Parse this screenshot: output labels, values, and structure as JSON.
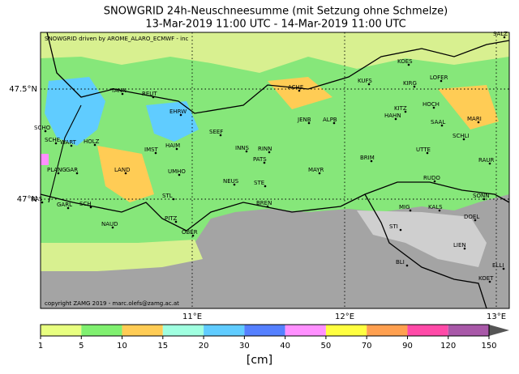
{
  "header": {
    "title": "SNOWGRID 24h-Neuschneesumme (mit Setzung ohne Schmelze)",
    "subtitle": "13-Mar-2019 11:00 UTC - 14-Mar-2019 11:00 UTC"
  },
  "map": {
    "credit_top": "SNOWGRID driven by AROME_ALARO_ECMWF - inc",
    "credit_bottom": "copyright ZAMG 2019 - marc.olefs@zamg.ac.at",
    "lat_labels": [
      "47.5°N",
      "47°N"
    ],
    "lon_labels": [
      "11°E",
      "12°E",
      "13°E"
    ],
    "places": [
      "SALZ",
      "KOES",
      "KUFS",
      "KIRG",
      "LOFER",
      "ACHE",
      "TANN",
      "REUT",
      "EHRW",
      "KITZ",
      "HOCH",
      "HAHN",
      "JENB",
      "ALPB",
      "SAAL",
      "MARI",
      "SEEF",
      "SCHLI",
      "INNS",
      "RINN",
      "IMST",
      "HAIM",
      "UTTE",
      "BRIM",
      "RAUR",
      "PATS",
      "LAND",
      "UMHO",
      "MAYR",
      "RUDO",
      "NEUS",
      "STE",
      "SONN",
      "STL",
      "BREN",
      "MIG",
      "KALS",
      "DOEL",
      "PITZ",
      "NAUD",
      "STI",
      "OBER",
      "LIEN",
      "BLI",
      "ELLI",
      "KOET",
      "GARL",
      "SCH",
      "WART",
      "HOLZ",
      "PLANG",
      "GAR",
      "SCHO",
      "SCHE",
      "NAS"
    ]
  },
  "colorbar": {
    "ticks": [
      "1",
      "5",
      "10",
      "15",
      "20",
      "30",
      "40",
      "50",
      "70",
      "90",
      "120",
      "150"
    ],
    "colors": [
      "#e8ff80",
      "#80f070",
      "#ffcc55",
      "#a0ffe0",
      "#60ccff",
      "#5580ff",
      "#ff90ff",
      "#ffff40",
      "#ffa050",
      "#ff4aa8",
      "#a858a8"
    ],
    "extend_color": "#555555",
    "unit": "[cm]"
  }
}
